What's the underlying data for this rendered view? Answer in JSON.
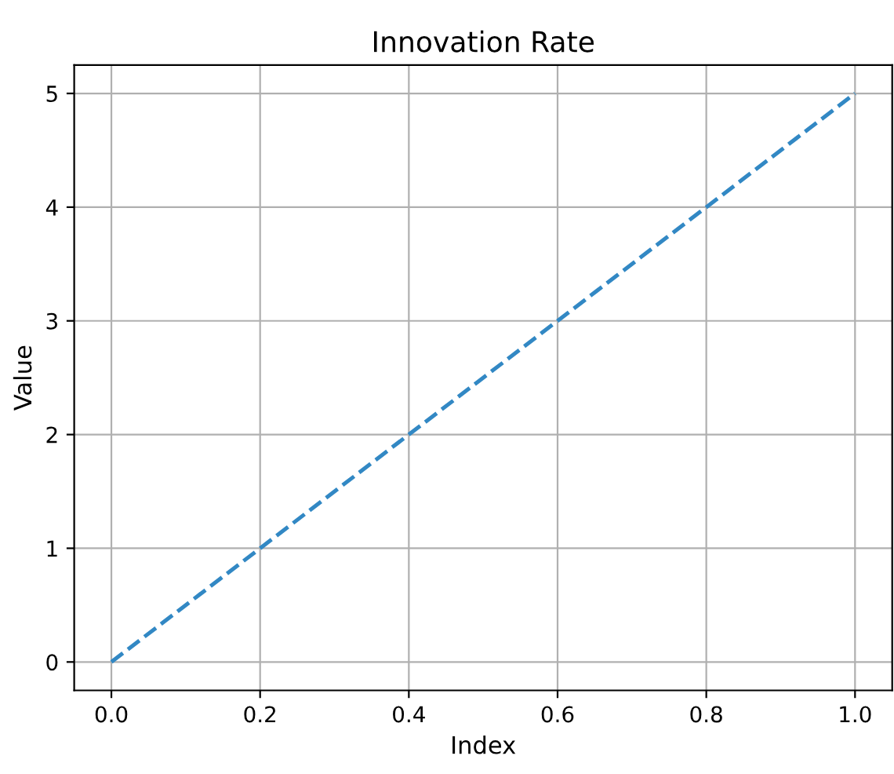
{
  "chart_data": {
    "type": "line",
    "title": "Innovation Rate",
    "xlabel": "Index",
    "ylabel": "Value",
    "x": [
      0.0,
      0.2,
      0.4,
      0.6,
      0.8,
      1.0
    ],
    "series": [
      {
        "color": "#3288c4",
        "values": [
          0,
          1,
          2,
          3,
          4,
          5
        ]
      }
    ],
    "line_style": "dashed",
    "marker": "none",
    "grid": true,
    "xlim": [
      -0.05,
      1.05
    ],
    "ylim": [
      -0.25,
      5.25
    ],
    "xticks": [
      {
        "value": 0.0,
        "label": "0.0"
      },
      {
        "value": 0.2,
        "label": "0.2"
      },
      {
        "value": 0.4,
        "label": "0.4"
      },
      {
        "value": 0.6,
        "label": "0.6"
      },
      {
        "value": 0.8,
        "label": "0.8"
      },
      {
        "value": 1.0,
        "label": "1.0"
      }
    ],
    "yticks": [
      0,
      1,
      2,
      3,
      4,
      5
    ]
  }
}
